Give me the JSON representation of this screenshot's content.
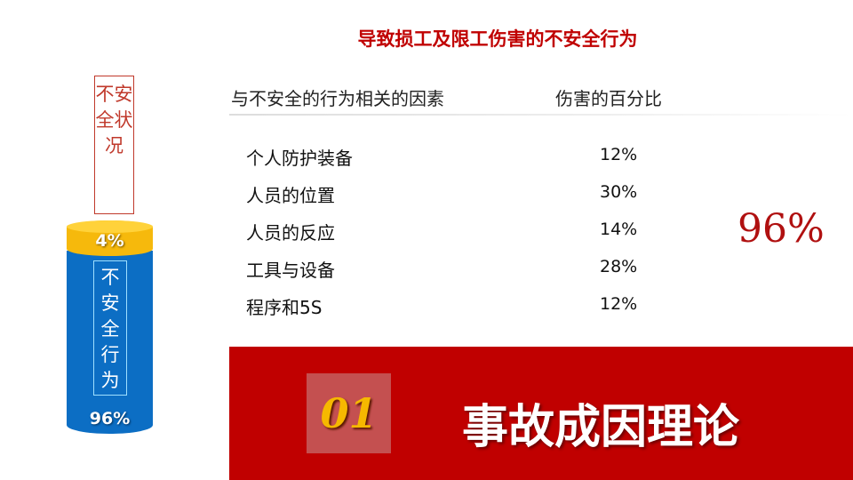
{
  "title": "导致损工及限工伤害的不安全行为",
  "table": {
    "headers": [
      "与不安全的行为相关的因素",
      "伤害的百分比"
    ],
    "rows": [
      {
        "factor": "个人防护装备",
        "percent": "12%"
      },
      {
        "factor": "人员的位置",
        "percent": "30%"
      },
      {
        "factor": "人员的反应",
        "percent": "14%"
      },
      {
        "factor": "工具与设备",
        "percent": "28%"
      },
      {
        "factor": "程序和5S",
        "percent": "12%"
      }
    ],
    "total": "96%"
  },
  "cylinder": {
    "condition_label": "不安全状况",
    "condition_percent": "4%",
    "condition_share": 0.04,
    "behavior_label": "不安全行为",
    "behavior_percent": "96%",
    "behavior_share": 0.96,
    "colors": {
      "condition": "#f6b90c",
      "behavior": "#0c6ec4"
    }
  },
  "banner": {
    "number": "01",
    "section_title": "事故成因理论",
    "color": "#c00000"
  }
}
